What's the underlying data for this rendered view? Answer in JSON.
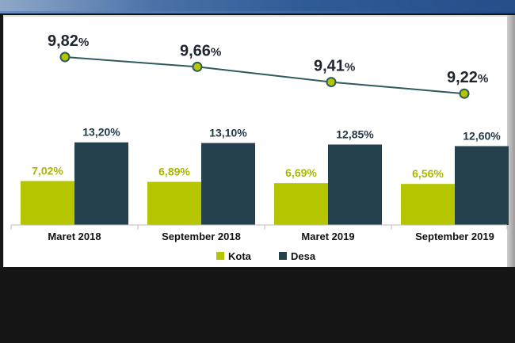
{
  "colors": {
    "kota": "#b5c600",
    "desa": "#25414d",
    "line": "#2f5a5e",
    "marker_fill": "#b5c600"
  },
  "chart_data": {
    "type": "bar",
    "categories": [
      "Maret 2018",
      "September 2018",
      "Maret 2019",
      "September 2019"
    ],
    "series": [
      {
        "name": "Kota",
        "values": [
          7.02,
          6.89,
          6.69,
          6.56
        ],
        "labels": [
          "7,02%",
          "6,89%",
          "6,69%",
          "6,56%"
        ]
      },
      {
        "name": "Desa",
        "values": [
          13.2,
          13.1,
          12.85,
          12.6
        ],
        "labels": [
          "13,20%",
          "13,10%",
          "12,85%",
          "12,60%"
        ]
      }
    ],
    "line_series": {
      "values": [
        9.82,
        9.66,
        9.41,
        9.22
      ],
      "labels": [
        {
          "num": "9,82",
          "unit": "%"
        },
        {
          "num": "9,66",
          "unit": "%"
        },
        {
          "num": "9,41",
          "unit": "%"
        },
        {
          "num": "9,22",
          "unit": "%"
        }
      ]
    },
    "legend": {
      "position": "bottom",
      "items": [
        "Kota",
        "Desa"
      ]
    },
    "grid": false
  }
}
